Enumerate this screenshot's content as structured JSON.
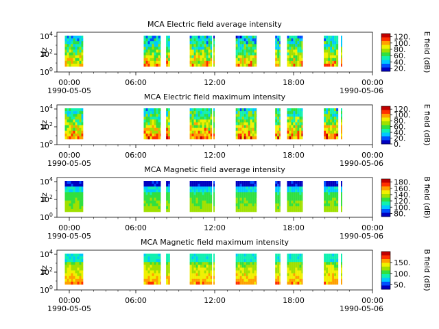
{
  "colormap": [
    "#0000c0",
    "#0050ff",
    "#00c8ff",
    "#10f0b0",
    "#30e040",
    "#a0e000",
    "#f0f000",
    "#ffa000",
    "#ff3000",
    "#c00000"
  ],
  "chart_data": [
    {
      "type": "heatmap",
      "title": "MCA  Electric field average intensity",
      "ylabel": "Hz",
      "y_scale": "log",
      "y_ticks": [
        "10^0",
        "10^2",
        "10^4"
      ],
      "x_ticks": [
        "00:00",
        "06:00",
        "12:00",
        "18:00",
        "00:00"
      ],
      "x_tick_dates": [
        "1990-05-05",
        "1990-05-06"
      ],
      "x_range_hours": [
        0,
        24
      ],
      "colorbar_label": "E field (dB)",
      "colorbar_ticks": [
        "20.",
        "40.",
        "60.",
        "80.",
        "100.",
        "120."
      ],
      "colorbar_range": [
        10,
        130
      ],
      "data_spans_hours": [
        [
          0.6,
          2.0
        ],
        [
          6.6,
          7.9
        ],
        [
          8.3,
          8.6
        ],
        [
          10.1,
          11.8
        ],
        [
          11.9,
          12.0
        ],
        [
          13.6,
          15.2
        ],
        [
          16.6,
          17.0
        ],
        [
          17.5,
          18.7
        ],
        [
          20.3,
          21.4
        ],
        [
          21.6,
          21.7
        ]
      ]
    },
    {
      "type": "heatmap",
      "title": "MCA  Electric field maximum intensity",
      "ylabel": "Hz",
      "y_scale": "log",
      "y_ticks": [
        "10^0",
        "10^2",
        "10^4"
      ],
      "x_ticks": [
        "00:00",
        "06:00",
        "12:00",
        "18:00",
        "00:00"
      ],
      "x_tick_dates": [
        "1990-05-05",
        "1990-05-06"
      ],
      "x_range_hours": [
        0,
        24
      ],
      "colorbar_label": "E field (dB)",
      "colorbar_ticks": [
        "0.",
        "20.",
        "40.",
        "60.",
        "80.",
        "100.",
        "120."
      ],
      "colorbar_range": [
        0,
        130
      ],
      "data_spans_hours": [
        [
          0.6,
          2.0
        ],
        [
          6.6,
          7.9
        ],
        [
          8.3,
          8.6
        ],
        [
          10.1,
          11.8
        ],
        [
          11.9,
          12.0
        ],
        [
          13.6,
          15.2
        ],
        [
          16.6,
          17.0
        ],
        [
          17.5,
          18.7
        ],
        [
          20.3,
          21.4
        ],
        [
          21.6,
          21.7
        ]
      ]
    },
    {
      "type": "heatmap",
      "title": "MCA  Magnetic field average intensity",
      "ylabel": "Hz",
      "y_scale": "log",
      "y_ticks": [
        "10^0",
        "10^2",
        "10^4"
      ],
      "x_ticks": [
        "00:00",
        "06:00",
        "12:00",
        "18:00",
        "00:00"
      ],
      "x_tick_dates": [
        "1990-05-05",
        "1990-05-06"
      ],
      "x_range_hours": [
        0,
        24
      ],
      "colorbar_label": "B field (dB)",
      "colorbar_ticks": [
        "80.",
        "100.",
        "120.",
        "140.",
        "160.",
        "180."
      ],
      "colorbar_range": [
        70,
        190
      ],
      "data_spans_hours": [
        [
          0.6,
          2.0
        ],
        [
          6.6,
          7.9
        ],
        [
          8.3,
          8.6
        ],
        [
          10.1,
          11.8
        ],
        [
          11.9,
          12.0
        ],
        [
          13.6,
          15.2
        ],
        [
          16.6,
          17.0
        ],
        [
          17.5,
          18.7
        ],
        [
          20.3,
          21.4
        ],
        [
          21.6,
          21.7
        ]
      ]
    },
    {
      "type": "heatmap",
      "title": "MCA  Magnetic field maximum intensity",
      "ylabel": "Hz",
      "y_scale": "log",
      "y_ticks": [
        "10^0",
        "10^2",
        "10^4"
      ],
      "x_ticks": [
        "00:00",
        "06:00",
        "12:00",
        "18:00",
        "00:00"
      ],
      "x_tick_dates": [
        "1990-05-05",
        "1990-05-06"
      ],
      "x_range_hours": [
        0,
        24
      ],
      "colorbar_label": "B field (dB)",
      "colorbar_ticks": [
        "50.",
        "100.",
        "150."
      ],
      "colorbar_range": [
        30,
        200
      ],
      "data_spans_hours": [
        [
          0.6,
          2.0
        ],
        [
          6.6,
          7.9
        ],
        [
          8.3,
          8.6
        ],
        [
          10.1,
          11.8
        ],
        [
          11.9,
          12.0
        ],
        [
          13.6,
          15.2
        ],
        [
          16.6,
          17.0
        ],
        [
          17.5,
          18.7
        ],
        [
          20.3,
          21.4
        ],
        [
          21.6,
          21.7
        ]
      ]
    }
  ]
}
